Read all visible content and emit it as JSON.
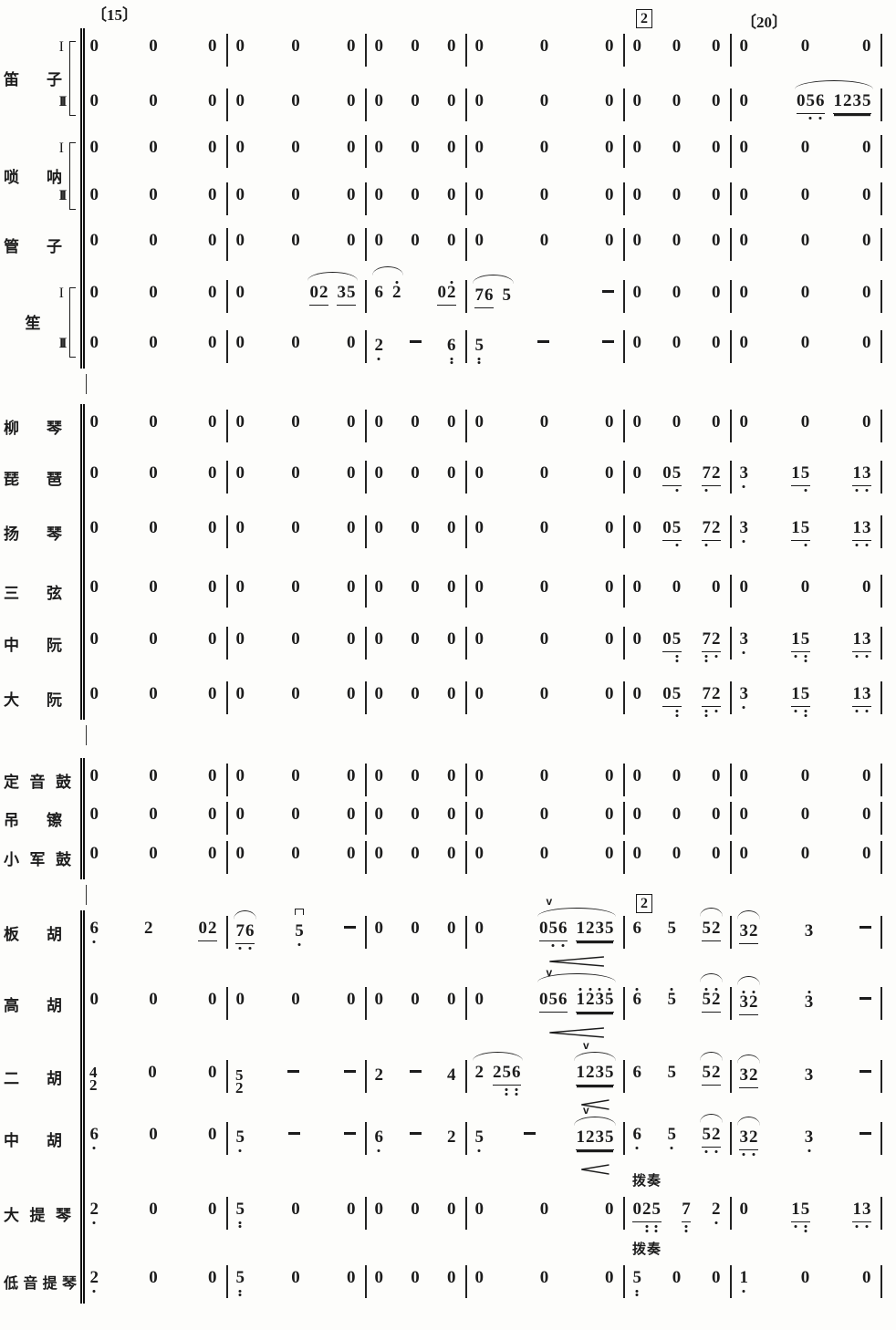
{
  "page": {
    "ink": "#1c1c1c",
    "background": "#fdfdfb"
  },
  "markers": [
    {
      "text": "〔15〕",
      "measure": 0,
      "pos": "top",
      "boxed": false
    },
    {
      "text": "2",
      "measure": 4,
      "pos": "top",
      "boxed": true
    },
    {
      "text": "〔20〕",
      "measure": 5,
      "pos": "top",
      "boxed": false
    },
    {
      "text": "2",
      "measure": 4,
      "pos": "strings",
      "boxed": true
    }
  ],
  "groups": [
    {
      "label": "笛子",
      "rows": [
        0,
        1
      ],
      "numerals": [
        "I",
        "II"
      ]
    },
    {
      "label": "唢呐",
      "rows": [
        2,
        3
      ],
      "numerals": [
        "I",
        "II"
      ]
    },
    {
      "label": "管子",
      "rows": [
        4
      ]
    },
    {
      "label": "笙",
      "rows": [
        5,
        6
      ],
      "numerals": [
        "I",
        "II"
      ]
    },
    {
      "label": "柳琴",
      "rows": [
        7
      ]
    },
    {
      "label": "琵琶",
      "rows": [
        8
      ]
    },
    {
      "label": "扬琴",
      "rows": [
        9
      ]
    },
    {
      "label": "三弦",
      "rows": [
        10
      ]
    },
    {
      "label": "中阮",
      "rows": [
        11
      ]
    },
    {
      "label": "大阮",
      "rows": [
        12
      ]
    },
    {
      "label": "定音鼓",
      "rows": [
        13
      ]
    },
    {
      "label": "吊镲",
      "rows": [
        14
      ]
    },
    {
      "label": "小军鼓",
      "rows": [
        15
      ]
    },
    {
      "label": "板胡",
      "rows": [
        16
      ]
    },
    {
      "label": "高胡",
      "rows": [
        17
      ]
    },
    {
      "label": "二胡",
      "rows": [
        18
      ]
    },
    {
      "label": "中胡",
      "rows": [
        19
      ]
    },
    {
      "label": "大提琴",
      "rows": [
        20
      ]
    },
    {
      "label": "低音提琴",
      "rows": [
        21
      ]
    }
  ],
  "pizzicato_label": "拨奏",
  "rows": [
    {
      "id": "dizi-1",
      "measures": [
        [
          "0",
          "0",
          "0"
        ],
        [
          "0",
          "0",
          "0"
        ],
        [
          "0",
          "0",
          "0"
        ],
        [
          "0",
          "0",
          "0"
        ],
        [
          "0",
          "0",
          "0"
        ],
        [
          "0",
          "0",
          "0"
        ]
      ]
    },
    {
      "id": "dizi-2",
      "measures": [
        [
          "0",
          "0",
          "0"
        ],
        [
          "0",
          "0",
          "0"
        ],
        [
          "0",
          "0",
          "0"
        ],
        [
          "0",
          "0",
          "0"
        ],
        [
          "0",
          "0",
          "0"
        ],
        [
          "0",
          {
            "g": [
              {
                "t": "056",
                "u": 1,
                "db": "011"
              },
              {
                "t": "1235",
                "u": 2
              }
            ],
            "arc": true
          }
        ]
      ]
    },
    {
      "id": "suona-1",
      "measures": [
        [
          "0",
          "0",
          "0"
        ],
        [
          "0",
          "0",
          "0"
        ],
        [
          "0",
          "0",
          "0"
        ],
        [
          "0",
          "0",
          "0"
        ],
        [
          "0",
          "0",
          "0"
        ],
        [
          "0",
          "0",
          "0"
        ]
      ]
    },
    {
      "id": "suona-2",
      "measures": [
        [
          "0",
          "0",
          "0"
        ],
        [
          "0",
          "0",
          "0"
        ],
        [
          "0",
          "0",
          "0"
        ],
        [
          "0",
          "0",
          "0"
        ],
        [
          "0",
          "0",
          "0"
        ],
        [
          "0",
          "0",
          "0"
        ]
      ]
    },
    {
      "id": "guanzi",
      "measures": [
        [
          "0",
          "0",
          "0"
        ],
        [
          "0",
          "0",
          "0"
        ],
        [
          "0",
          "0",
          "0"
        ],
        [
          "0",
          "0",
          "0"
        ],
        [
          "0",
          "0",
          "0"
        ],
        [
          "0",
          "0",
          "0"
        ]
      ]
    },
    {
      "id": "sheng-1",
      "measures": [
        [
          "0",
          "0",
          "0"
        ],
        [
          "0",
          {
            "g": [
              {
                "t": "02",
                "u": 1
              },
              {
                "t": "35",
                "u": 1
              }
            ],
            "arc": true
          }
        ],
        [
          {
            "g": [
              {
                "t": "6"
              },
              {
                "t": "2",
                "da": "1"
              }
            ],
            "arc": true
          },
          {
            "t": "02",
            "u": 1,
            "da": "01"
          }
        ],
        [
          {
            "g": [
              {
                "t": "76",
                "u": 1
              },
              {
                "t": "5"
              }
            ],
            "arc": true
          },
          "-"
        ],
        [
          "0",
          "0",
          "0"
        ],
        [
          "0",
          "0",
          "0"
        ]
      ]
    },
    {
      "id": "sheng-2",
      "measures": [
        [
          "0",
          "0",
          "0"
        ],
        [
          "0",
          "0",
          "0"
        ],
        [
          {
            "t": "2",
            "db": "1"
          },
          "-",
          {
            "t": "6",
            "db": "2"
          }
        ],
        [
          {
            "t": "5",
            "db": "2"
          },
          "-",
          "-"
        ],
        [
          "0",
          "0",
          "0"
        ],
        [
          "0",
          "0",
          "0"
        ]
      ]
    },
    {
      "id": "liuqin",
      "measures": [
        [
          "0",
          "0",
          "0"
        ],
        [
          "0",
          "0",
          "0"
        ],
        [
          "0",
          "0",
          "0"
        ],
        [
          "0",
          "0",
          "0"
        ],
        [
          "0",
          "0",
          "0"
        ],
        [
          "0",
          "0",
          "0"
        ]
      ]
    },
    {
      "id": "pipa",
      "measures": [
        [
          "0",
          "0",
          "0"
        ],
        [
          "0",
          "0",
          "0"
        ],
        [
          "0",
          "0",
          "0"
        ],
        [
          "0",
          "0",
          "0"
        ],
        [
          "0",
          {
            "t": "05",
            "u": 1,
            "db": "01"
          },
          {
            "t": "72",
            "u": 1,
            "db": "10"
          }
        ],
        [
          {
            "t": "3",
            "db": "1"
          },
          {
            "t": "15",
            "u": 1,
            "db": "01"
          },
          {
            "t": "13",
            "u": 1,
            "db": "11"
          }
        ]
      ]
    },
    {
      "id": "yangqin",
      "measures": [
        [
          "0",
          "0",
          "0"
        ],
        [
          "0",
          "0",
          "0"
        ],
        [
          "0",
          "0",
          "0"
        ],
        [
          "0",
          "0",
          "0"
        ],
        [
          "0",
          {
            "t": "05",
            "u": 1,
            "db": "01"
          },
          {
            "t": "72",
            "u": 1,
            "db": "10"
          }
        ],
        [
          {
            "t": "3",
            "db": "1"
          },
          {
            "t": "15",
            "u": 1,
            "db": "01"
          },
          {
            "t": "13",
            "u": 1,
            "db": "11"
          }
        ]
      ]
    },
    {
      "id": "sanxian",
      "measures": [
        [
          "0",
          "0",
          "0"
        ],
        [
          "0",
          "0",
          "0"
        ],
        [
          "0",
          "0",
          "0"
        ],
        [
          "0",
          "0",
          "0"
        ],
        [
          "0",
          "0",
          "0"
        ],
        [
          "0",
          "0",
          "0"
        ]
      ]
    },
    {
      "id": "zhongruan",
      "measures": [
        [
          "0",
          "0",
          "0"
        ],
        [
          "0",
          "0",
          "0"
        ],
        [
          "0",
          "0",
          "0"
        ],
        [
          "0",
          "0",
          "0"
        ],
        [
          "0",
          {
            "t": "05",
            "u": 1,
            "db": "02"
          },
          {
            "t": "72",
            "u": 1,
            "db": "21"
          }
        ],
        [
          {
            "t": "3",
            "db": "1"
          },
          {
            "t": "15",
            "u": 1,
            "db": "12"
          },
          {
            "t": "13",
            "u": 1,
            "db": "11"
          }
        ]
      ]
    },
    {
      "id": "daruan",
      "measures": [
        [
          "0",
          "0",
          "0"
        ],
        [
          "0",
          "0",
          "0"
        ],
        [
          "0",
          "0",
          "0"
        ],
        [
          "0",
          "0",
          "0"
        ],
        [
          "0",
          {
            "t": "05",
            "u": 1,
            "db": "02"
          },
          {
            "t": "72",
            "u": 1,
            "db": "21"
          }
        ],
        [
          {
            "t": "3",
            "db": "1"
          },
          {
            "t": "15",
            "u": 1,
            "db": "12"
          },
          {
            "t": "13",
            "u": 1,
            "db": "11"
          }
        ]
      ]
    },
    {
      "id": "timpani",
      "measures": [
        [
          "0",
          "0",
          "0"
        ],
        [
          "0",
          "0",
          "0"
        ],
        [
          "0",
          "0",
          "0"
        ],
        [
          "0",
          "0",
          "0"
        ],
        [
          "0",
          "0",
          "0"
        ],
        [
          "0",
          "0",
          "0"
        ]
      ]
    },
    {
      "id": "cymbal",
      "measures": [
        [
          "0",
          "0",
          "0"
        ],
        [
          "0",
          "0",
          "0"
        ],
        [
          "0",
          "0",
          "0"
        ],
        [
          "0",
          "0",
          "0"
        ],
        [
          "0",
          "0",
          "0"
        ],
        [
          "0",
          "0",
          "0"
        ]
      ]
    },
    {
      "id": "snare",
      "measures": [
        [
          "0",
          "0",
          "0"
        ],
        [
          "0",
          "0",
          "0"
        ],
        [
          "0",
          "0",
          "0"
        ],
        [
          "0",
          "0",
          "0"
        ],
        [
          "0",
          "0",
          "0"
        ],
        [
          "0",
          "0",
          "0"
        ]
      ]
    },
    {
      "id": "banhu",
      "measures": [
        [
          {
            "t": "6",
            "db": "1"
          },
          "2",
          {
            "t": "02",
            "u": 1
          }
        ],
        [
          {
            "t": "76",
            "u": 1,
            "db": "11",
            "arc": true
          },
          {
            "t": "5",
            "db": "1",
            "bow": "n"
          },
          "-"
        ],
        [
          "0",
          "0",
          "0"
        ],
        [
          "0",
          {
            "g": [
              {
                "t": "056",
                "u": 1,
                "db": "011"
              },
              {
                "t": "1235",
                "u": 2
              }
            ],
            "arc": true,
            "bow": "v",
            "hairpin": true
          }
        ],
        [
          "6",
          "5",
          {
            "t": "52",
            "u": 1,
            "arc": true
          }
        ],
        [
          {
            "t": "32",
            "u": 1,
            "arc": true
          },
          "3",
          "-"
        ]
      ]
    },
    {
      "id": "gaohu",
      "measures": [
        [
          "0",
          "0",
          "0"
        ],
        [
          "0",
          "0",
          "0"
        ],
        [
          "0",
          "0",
          "0"
        ],
        [
          "0",
          {
            "g": [
              {
                "t": "056",
                "u": 1
              },
              {
                "t": "1235",
                "u": 2,
                "da": "1111"
              }
            ],
            "arc": true,
            "bow": "v",
            "hairpin": true
          }
        ],
        [
          {
            "t": "6",
            "da": "1"
          },
          {
            "t": "5",
            "da": "1"
          },
          {
            "t": "52",
            "u": 1,
            "da": "11",
            "arc": true
          }
        ],
        [
          {
            "t": "32",
            "u": 1,
            "da": "11",
            "arc": true
          },
          {
            "t": "3",
            "da": "1"
          },
          "-"
        ]
      ]
    },
    {
      "id": "erhu",
      "measures": [
        [
          {
            "stack": [
              "4",
              "2"
            ]
          },
          "0",
          "0"
        ],
        [
          {
            "stack": [
              "5",
              "2"
            ]
          },
          "-",
          "-"
        ],
        [
          "2",
          "-",
          "4"
        ],
        [
          {
            "g": [
              {
                "t": "2"
              },
              {
                "t": "256",
                "u": 1,
                "db": "022"
              }
            ],
            "arc": true
          },
          {
            "t": "1235",
            "u": 2,
            "arc": true,
            "bow": "v",
            "hairpin": true
          }
        ],
        [
          "6",
          "5",
          {
            "t": "52",
            "u": 1,
            "arc": true
          }
        ],
        [
          {
            "t": "32",
            "u": 1,
            "arc": true
          },
          "3",
          "-"
        ]
      ]
    },
    {
      "id": "zhonghu",
      "measures": [
        [
          {
            "t": "6",
            "db": "1"
          },
          "0",
          "0"
        ],
        [
          {
            "t": "5",
            "db": "1"
          },
          "-",
          "-"
        ],
        [
          {
            "t": "6",
            "db": "1"
          },
          "-",
          "2"
        ],
        [
          {
            "t": "5",
            "db": "1"
          },
          "-",
          {
            "t": "1235",
            "u": 2,
            "arc": true,
            "bow": "v",
            "hairpin": true
          }
        ],
        [
          {
            "t": "6",
            "db": "1"
          },
          {
            "t": "5",
            "db": "1"
          },
          {
            "t": "52",
            "u": 1,
            "db": "11",
            "arc": true
          }
        ],
        [
          {
            "t": "32",
            "u": 1,
            "db": "11",
            "arc": true
          },
          {
            "t": "3",
            "db": "1"
          },
          "-"
        ]
      ]
    },
    {
      "id": "cello",
      "measures": [
        [
          {
            "t": "2",
            "db": "1"
          },
          "0",
          "0"
        ],
        [
          {
            "t": "5",
            "db": "2"
          },
          "0",
          "0"
        ],
        [
          "0",
          "0",
          "0"
        ],
        [
          "0",
          "0",
          "0"
        ],
        {
          "label": "拨奏",
          "beats": [
            {
              "t": "025",
              "u": 1,
              "db": "022"
            },
            {
              "t": "7",
              "u": 1,
              "db": "2"
            },
            {
              "t": "2",
              "db": "1"
            }
          ]
        },
        [
          "0",
          {
            "t": "15",
            "u": 1,
            "db": "12"
          },
          {
            "t": "13",
            "u": 1,
            "db": "11"
          }
        ]
      ]
    },
    {
      "id": "bass",
      "measures": [
        [
          {
            "t": "2",
            "db": "1"
          },
          "0",
          "0"
        ],
        [
          {
            "t": "5",
            "db": "2"
          },
          "0",
          "0"
        ],
        [
          "0",
          "0",
          "0"
        ],
        [
          "0",
          "0",
          "0"
        ],
        {
          "label": "拨奏",
          "beats": [
            {
              "t": "5",
              "db": "2"
            },
            "0",
            "0"
          ]
        },
        [
          {
            "t": "1",
            "db": "1"
          },
          "0",
          "0"
        ]
      ]
    }
  ]
}
